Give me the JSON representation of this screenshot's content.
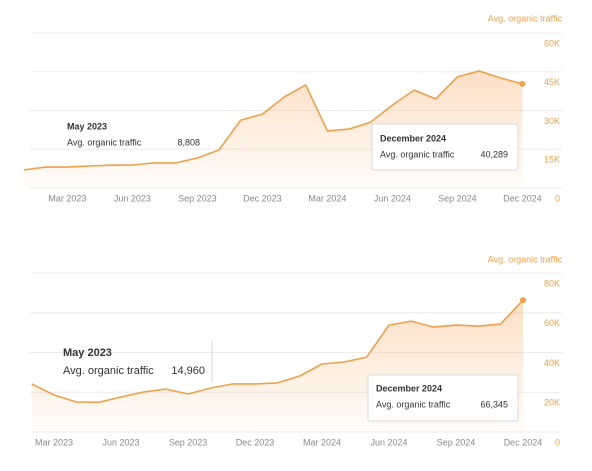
{
  "chart_data": [
    {
      "type": "line",
      "y_title": "Avg. organic traffic",
      "categories": [
        null,
        null,
        "Mar 2023",
        null,
        null,
        "Jun 2023",
        null,
        null,
        "Sep 2023",
        null,
        null,
        "Dec 2023",
        null,
        null,
        "Mar 2024",
        null,
        null,
        "Jun 2024",
        null,
        null,
        "Sep 2024",
        null,
        null,
        "Dec 2024"
      ],
      "series": [
        {
          "name": "Avg. organic traffic",
          "color": "#f0a04b",
          "values": [
            7000,
            8100,
            8100,
            8500,
            8808,
            8900,
            9700,
            9700,
            11600,
            14700,
            26300,
            28600,
            35200,
            39900,
            22100,
            22800,
            25500,
            32100,
            37900,
            34500,
            43000,
            45300,
            42600,
            40289
          ]
        }
      ],
      "ylim": [
        0,
        60000
      ],
      "yticks": [
        0,
        {
          "value": 15000,
          "label": "15K"
        },
        {
          "value": 30000,
          "label": "30K"
        },
        {
          "value": 45000,
          "label": "45K"
        },
        {
          "value": 60000,
          "label": "60K"
        }
      ],
      "grid": true,
      "annotations": [
        {
          "title": "May 2023",
          "label": "Avg. organic traffic",
          "value": "8,808"
        },
        {
          "title": "December 2024",
          "label": "Avg. organic traffic",
          "value": "40,289"
        }
      ]
    },
    {
      "type": "line",
      "y_title": "Avg. organic traffic",
      "categories": [
        null,
        "Mar 2023",
        null,
        null,
        "Jun 2023",
        null,
        null,
        "Sep 2023",
        null,
        null,
        "Dec 2023",
        null,
        null,
        "Mar 2024",
        null,
        null,
        "Jun 2024",
        null,
        null,
        "Sep 2024",
        null,
        null,
        "Dec 2024"
      ],
      "series": [
        {
          "name": "Avg. organic traffic",
          "color": "#f0a04b",
          "values": [
            24150,
            18600,
            15100,
            14960,
            17600,
            20100,
            21600,
            19100,
            22100,
            24200,
            24200,
            24700,
            28200,
            34200,
            35200,
            37700,
            53800,
            55800,
            52800,
            53800,
            53300,
            54300,
            66345
          ]
        }
      ],
      "ylim": [
        0,
        80000
      ],
      "yticks": [
        0,
        {
          "value": 20000,
          "label": "20K"
        },
        {
          "value": 40000,
          "label": "40K"
        },
        {
          "value": 60000,
          "label": "60K"
        },
        {
          "value": 80000,
          "label": "80K"
        }
      ],
      "grid": true,
      "annotations": [
        {
          "title": "May 2023",
          "label": "Avg. organic traffic",
          "value": "14,960"
        },
        {
          "title": "December 2024",
          "label": "Avg. organic traffic",
          "value": "66,345"
        }
      ]
    }
  ]
}
